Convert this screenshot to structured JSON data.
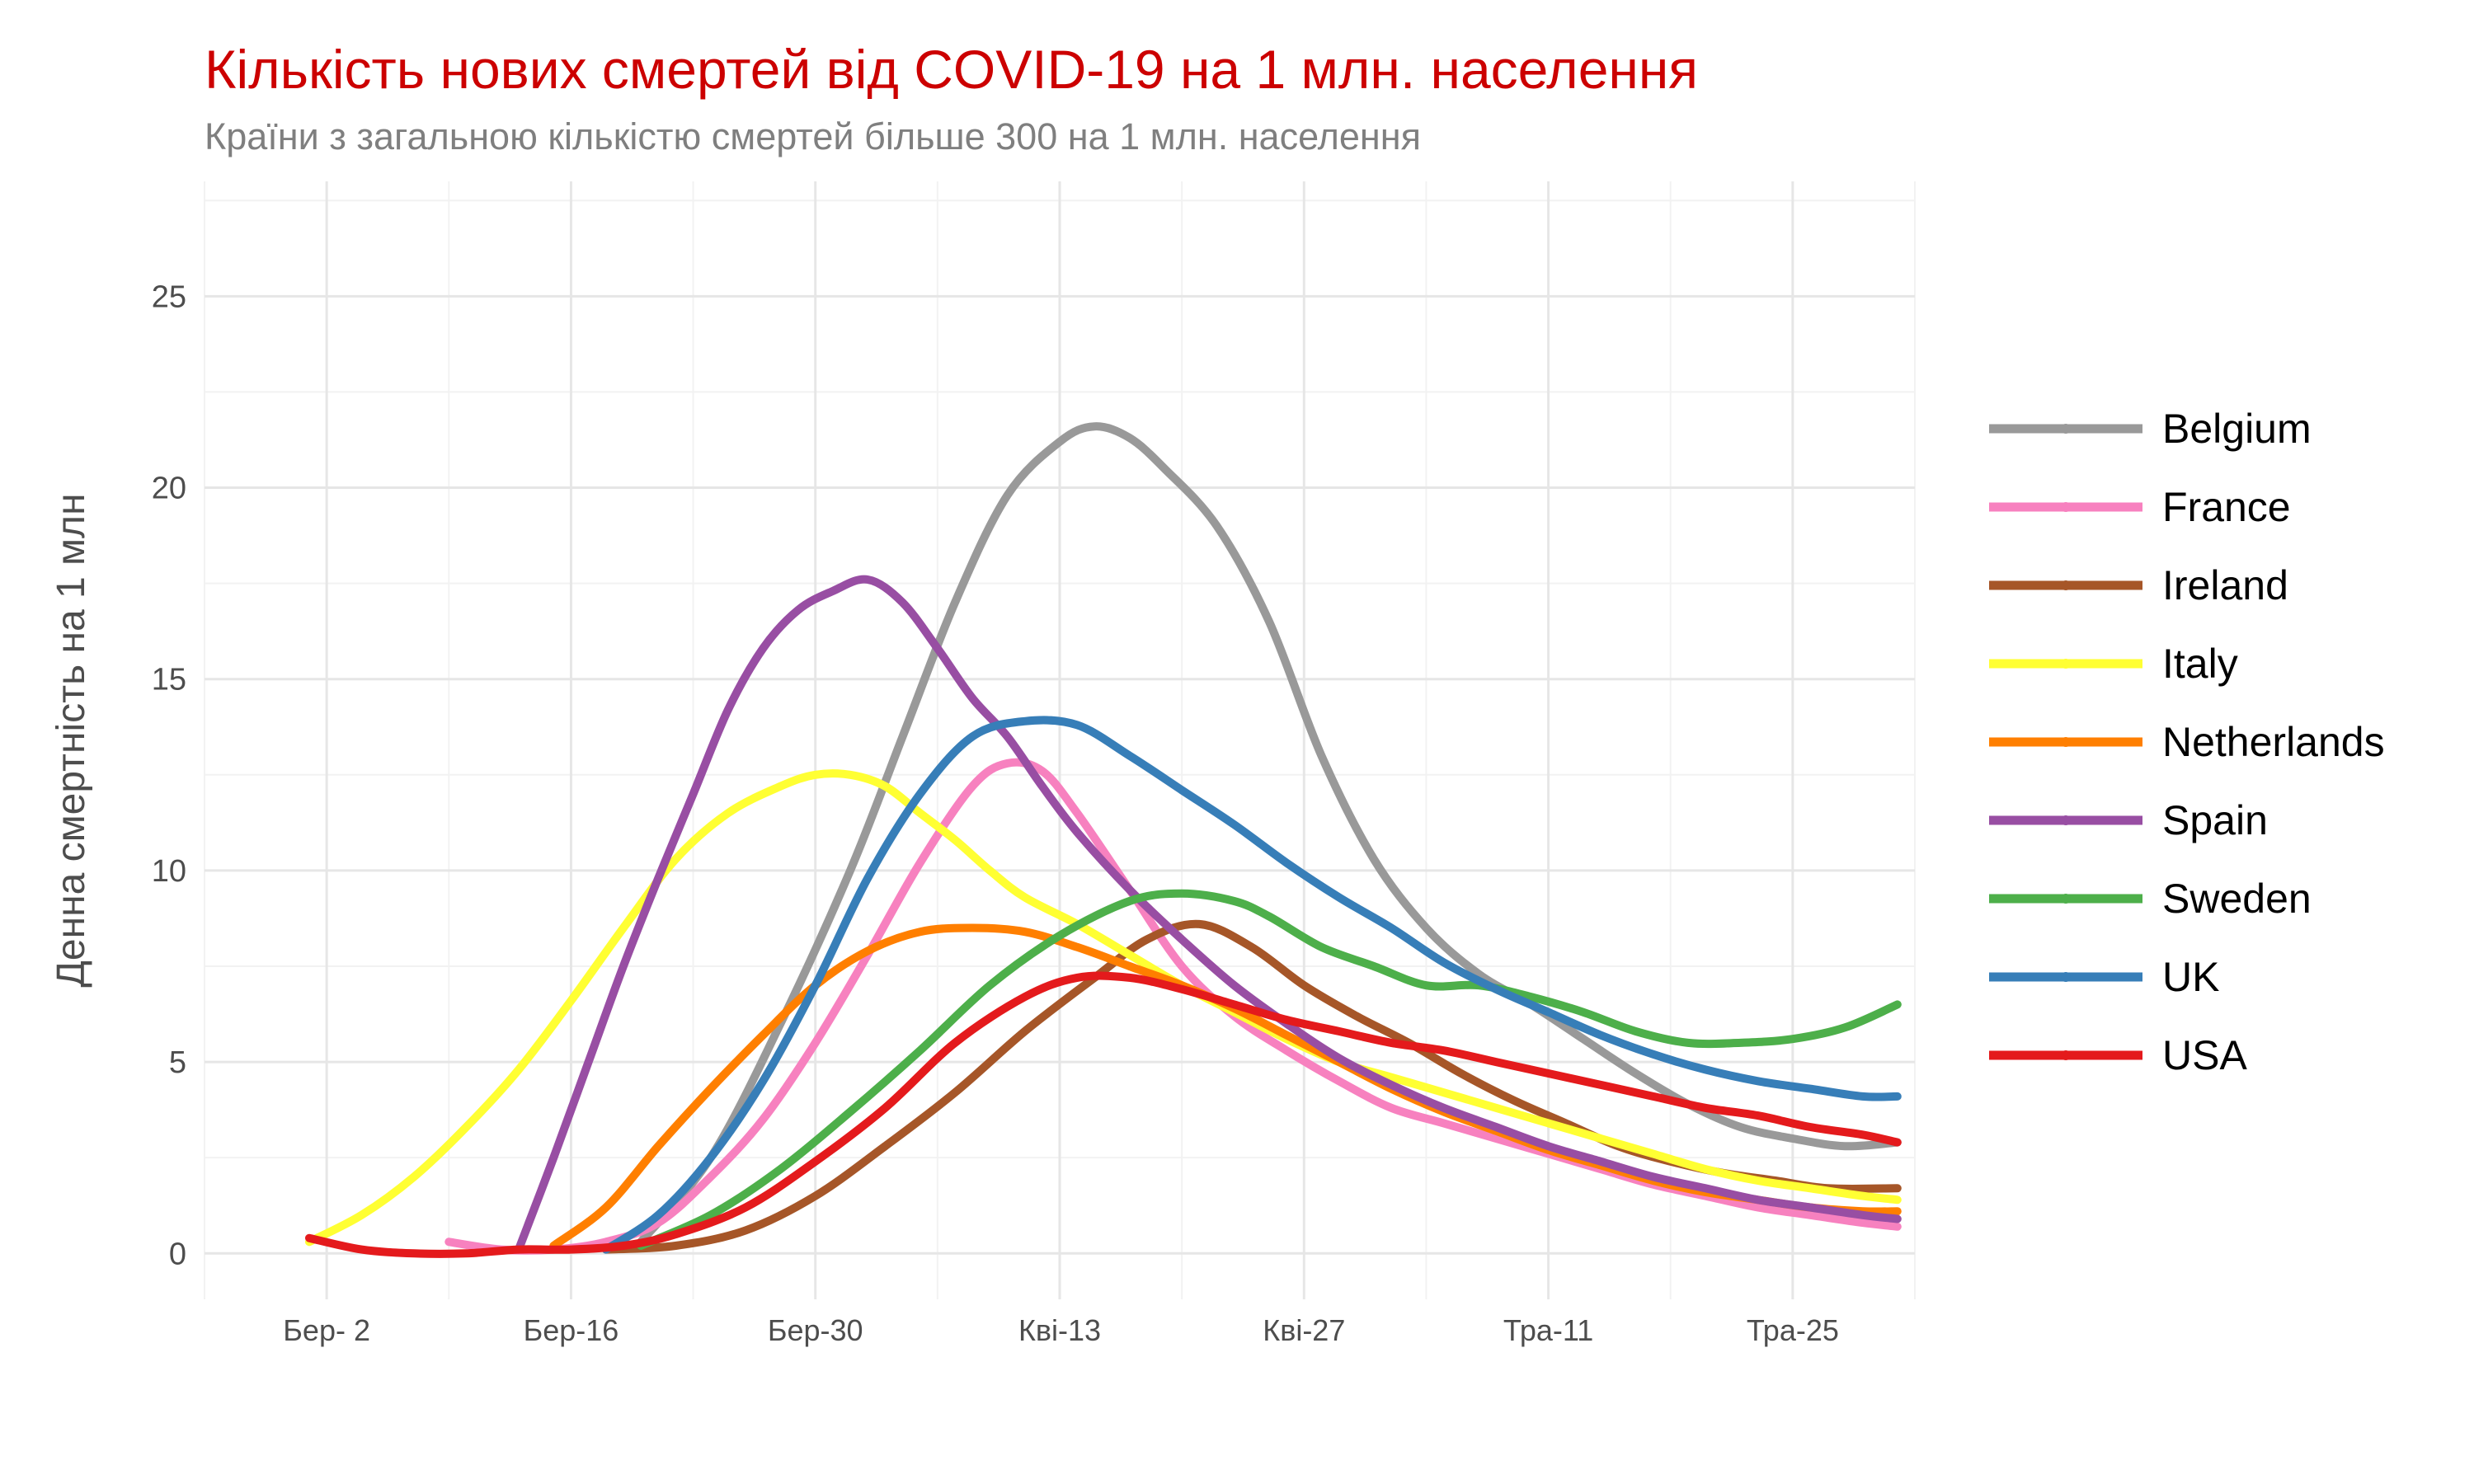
{
  "chart_data": {
    "type": "line",
    "title": "Кількість нових смертей від COVID-19 на 1 млн. населення",
    "subtitle": "Країни з загальною кількістю смертей більше  300 на 1 млн. населення",
    "xlabel": "",
    "ylabel": "Денна смертність на 1 млн",
    "x_ticks": [
      "Бер- 2",
      "Бер-16",
      "Бер-30",
      "Кві-13",
      "Кві-27",
      "Тра-11",
      "Тра-25"
    ],
    "y_ticks": [
      0,
      5,
      10,
      15,
      20,
      25
    ],
    "xlim": [
      -7,
      91
    ],
    "ylim": [
      -1.2,
      28
    ],
    "x_unit": "days since 2020-03-02",
    "grid": true,
    "legend_position": "right",
    "series": [
      {
        "name": "Belgium",
        "color": "#999999",
        "x": [
          18,
          22,
          26,
          30,
          33,
          36,
          39,
          42,
          44,
          46,
          48,
          51,
          54,
          57,
          60,
          63,
          66,
          69,
          72,
          75,
          78,
          81,
          84,
          87,
          90
        ],
        "values": [
          0.3,
          2.5,
          6,
          10,
          13.5,
          17,
          19.8,
          21.2,
          21.6,
          21.3,
          20.5,
          19,
          16.5,
          13,
          10.3,
          8.5,
          7.3,
          6.5,
          5.6,
          4.7,
          3.9,
          3.3,
          3.0,
          2.8,
          2.9
        ]
      },
      {
        "name": "France",
        "color": "#f781bf",
        "x": [
          7,
          10,
          13,
          16,
          19,
          22,
          25,
          28,
          31,
          34,
          37,
          39,
          41,
          43,
          46,
          49,
          52,
          55,
          58,
          61,
          64,
          67,
          70,
          73,
          76,
          79,
          82,
          85,
          88,
          90
        ],
        "values": [
          0.3,
          0.1,
          0.1,
          0.3,
          0.8,
          2.0,
          3.5,
          5.5,
          7.8,
          10.2,
          12.2,
          12.8,
          12.6,
          11.5,
          9.5,
          7.5,
          6.2,
          5.3,
          4.5,
          3.8,
          3.4,
          3.0,
          2.6,
          2.2,
          1.8,
          1.5,
          1.2,
          1.0,
          0.8,
          0.7
        ]
      },
      {
        "name": "Ireland",
        "color": "#a65628",
        "x": [
          16,
          20,
          24,
          28,
          32,
          36,
          40,
          44,
          47,
          50,
          53,
          56,
          59,
          62,
          65,
          68,
          71,
          74,
          77,
          80,
          83,
          86,
          90
        ],
        "values": [
          0.1,
          0.2,
          0.6,
          1.5,
          2.8,
          4.2,
          5.8,
          7.2,
          8.2,
          8.6,
          8.0,
          7.0,
          6.2,
          5.5,
          4.7,
          4.0,
          3.4,
          2.8,
          2.4,
          2.1,
          1.9,
          1.7,
          1.7
        ]
      },
      {
        "name": "Italy",
        "color": "#ffff33",
        "x": [
          -1,
          2,
          5,
          8,
          11,
          14,
          17,
          20,
          23,
          26,
          28,
          30,
          32,
          34,
          36,
          38,
          40,
          43,
          46,
          49,
          52,
          55,
          58,
          61,
          64,
          67,
          70,
          73,
          76,
          79,
          82,
          85,
          88,
          90
        ],
        "values": [
          0.3,
          1.0,
          2.0,
          3.3,
          4.8,
          6.6,
          8.5,
          10.3,
          11.5,
          12.2,
          12.5,
          12.5,
          12.2,
          11.5,
          10.8,
          10.0,
          9.3,
          8.6,
          7.8,
          7.0,
          6.3,
          5.6,
          5.0,
          4.6,
          4.2,
          3.8,
          3.4,
          3.0,
          2.6,
          2.2,
          1.9,
          1.7,
          1.5,
          1.4
        ]
      },
      {
        "name": "Netherlands",
        "color": "#ff7f00",
        "x": [
          13,
          16,
          19,
          22,
          25,
          28,
          31,
          34,
          37,
          40,
          43,
          46,
          49,
          52,
          55,
          58,
          61,
          64,
          67,
          70,
          73,
          76,
          79,
          82,
          85,
          88,
          90
        ],
        "values": [
          0.2,
          1.2,
          2.8,
          4.3,
          5.7,
          7.0,
          7.9,
          8.4,
          8.5,
          8.4,
          8.0,
          7.5,
          7.0,
          6.4,
          5.7,
          5.0,
          4.3,
          3.7,
          3.2,
          2.7,
          2.3,
          1.9,
          1.6,
          1.4,
          1.2,
          1.1,
          1.1
        ]
      },
      {
        "name": "Spain",
        "color": "#984ea3",
        "x": [
          11,
          13,
          15,
          17,
          19,
          21,
          23,
          25,
          27,
          29,
          31,
          33,
          35,
          37,
          39,
          41,
          43,
          46,
          49,
          52,
          55,
          58,
          61,
          64,
          67,
          70,
          73,
          76,
          79,
          82,
          85,
          88,
          90
        ],
        "values": [
          0.1,
          2.5,
          5.0,
          7.5,
          9.8,
          12.0,
          14.2,
          15.8,
          16.8,
          17.3,
          17.6,
          17.0,
          15.8,
          14.5,
          13.5,
          12.2,
          11.0,
          9.5,
          8.2,
          7.0,
          6.0,
          5.1,
          4.4,
          3.8,
          3.3,
          2.8,
          2.4,
          2.0,
          1.7,
          1.4,
          1.2,
          1.0,
          0.9
        ]
      },
      {
        "name": "Sweden",
        "color": "#4daf4a",
        "x": [
          18,
          22,
          26,
          30,
          34,
          38,
          42,
          46,
          49,
          52,
          54,
          57,
          60,
          63,
          66,
          69,
          72,
          75,
          78,
          81,
          84,
          87,
          90
        ],
        "values": [
          0.2,
          1.0,
          2.2,
          3.7,
          5.3,
          7.0,
          8.3,
          9.2,
          9.4,
          9.2,
          8.8,
          8.0,
          7.5,
          7.0,
          7.0,
          6.7,
          6.3,
          5.8,
          5.5,
          5.5,
          5.6,
          5.9,
          6.5
        ]
      },
      {
        "name": "UK",
        "color": "#377eb8",
        "x": [
          16,
          19,
          22,
          25,
          28,
          31,
          34,
          37,
          40,
          43,
          46,
          49,
          52,
          55,
          58,
          61,
          64,
          67,
          70,
          73,
          76,
          79,
          82,
          85,
          88,
          90
        ],
        "values": [
          0.1,
          1.0,
          2.5,
          4.5,
          7.0,
          9.8,
          12.0,
          13.5,
          13.9,
          13.8,
          13.0,
          12.1,
          11.2,
          10.2,
          9.3,
          8.5,
          7.6,
          6.9,
          6.3,
          5.7,
          5.2,
          4.8,
          4.5,
          4.3,
          4.1,
          4.1
        ]
      },
      {
        "name": "USA",
        "color": "#e41a1c",
        "x": [
          -1,
          2,
          5,
          8,
          11,
          14,
          17,
          20,
          24,
          28,
          32,
          36,
          40,
          43,
          46,
          49,
          52,
          55,
          58,
          61,
          64,
          67,
          70,
          73,
          76,
          79,
          82,
          85,
          88,
          90
        ],
        "values": [
          0.4,
          0.1,
          0.0,
          0.0,
          0.1,
          0.1,
          0.2,
          0.5,
          1.2,
          2.4,
          3.8,
          5.5,
          6.7,
          7.2,
          7.2,
          6.9,
          6.5,
          6.1,
          5.8,
          5.5,
          5.3,
          5.0,
          4.7,
          4.4,
          4.1,
          3.8,
          3.6,
          3.3,
          3.1,
          2.9
        ]
      }
    ]
  }
}
